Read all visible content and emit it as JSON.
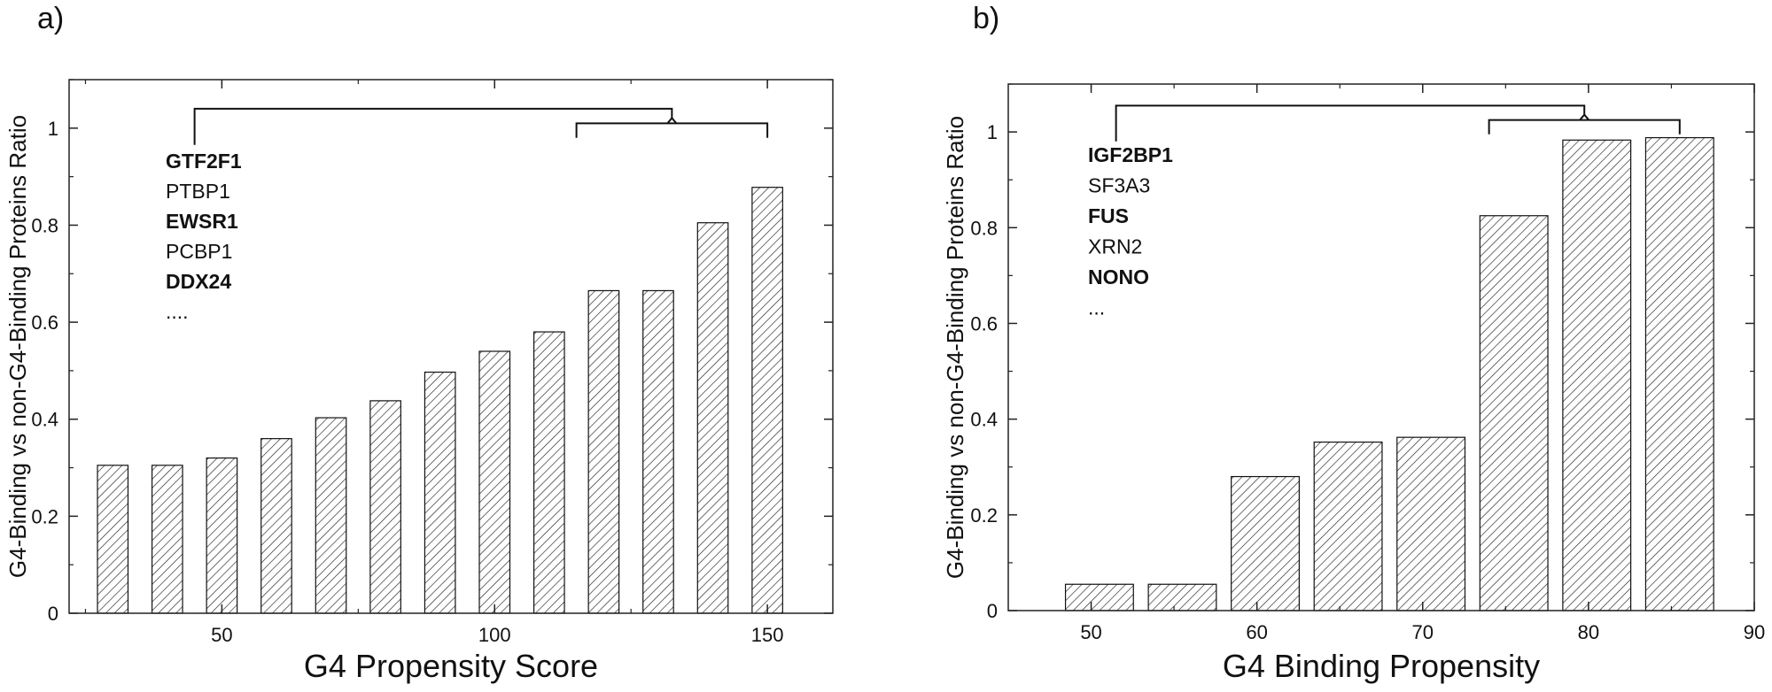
{
  "chart_data": [
    {
      "type": "bar",
      "panel_label": "a)",
      "title": "",
      "xlabel": "G4 Propensity Score",
      "ylabel": "G4-Binding vs non-G4-Binding Proteins Ratio",
      "x": [
        30,
        40,
        50,
        60,
        70,
        80,
        90,
        100,
        110,
        120,
        130,
        140,
        150
      ],
      "values": [
        0.305,
        0.305,
        0.32,
        0.36,
        0.403,
        0.438,
        0.497,
        0.54,
        0.58,
        0.665,
        0.665,
        0.805,
        0.878
      ],
      "xlim": [
        22,
        162
      ],
      "ylim": [
        0,
        1.1
      ],
      "xticks": [
        50,
        100,
        150
      ],
      "xtick_labels": [
        "50",
        "100",
        "150"
      ],
      "yticks": [
        0,
        0.2,
        0.4,
        0.6,
        0.8,
        1
      ],
      "ytick_labels": [
        "0",
        "0.2",
        "0.4",
        "0.6",
        "0.8",
        "1"
      ],
      "bar_width": 5.6,
      "grid": false,
      "bracket": {
        "outer_left": 45,
        "inner_left": 115,
        "inner_right": 150,
        "outer_top": 1.04,
        "inner_top": 1.01,
        "base": 0.98
      },
      "genes": [
        {
          "name": "GTF2F1",
          "bold": true
        },
        {
          "name": "PTBP1",
          "bold": false
        },
        {
          "name": "EWSR1",
          "bold": true
        },
        {
          "name": "PCBP1",
          "bold": false
        },
        {
          "name": "DDX24",
          "bold": true
        },
        {
          "name": "....",
          "bold": false
        }
      ]
    },
    {
      "type": "bar",
      "panel_label": "b)",
      "title": "",
      "xlabel": "G4 Binding Propensity",
      "ylabel": "G4-Binding vs non-G4-Binding Proteins Ratio",
      "x": [
        50.5,
        55.5,
        60.5,
        65.5,
        70.5,
        75.5,
        80.5,
        85.5
      ],
      "values": [
        0.055,
        0.055,
        0.28,
        0.352,
        0.362,
        0.825,
        0.983,
        0.988
      ],
      "xlim": [
        45,
        90
      ],
      "ylim": [
        0,
        1.1
      ],
      "xticks": [
        50,
        60,
        70,
        80,
        90
      ],
      "xtick_labels": [
        "50",
        "60",
        "70",
        "80",
        "90"
      ],
      "yticks": [
        0,
        0.2,
        0.4,
        0.6,
        0.8,
        1
      ],
      "ytick_labels": [
        "0",
        "0.2",
        "0.4",
        "0.6",
        "0.8",
        "1"
      ],
      "bar_width": 4.1,
      "grid": false,
      "bracket": {
        "outer_left": 51.5,
        "inner_left": 74,
        "inner_right": 85.5,
        "outer_top": 1.055,
        "inner_top": 1.025,
        "base": 0.995
      },
      "genes": [
        {
          "name": "IGF2BP1",
          "bold": true
        },
        {
          "name": "SF3A3",
          "bold": false
        },
        {
          "name": "FUS",
          "bold": true
        },
        {
          "name": "XRN2",
          "bold": false
        },
        {
          "name": "NONO",
          "bold": true
        },
        {
          "name": "...",
          "bold": false
        }
      ]
    }
  ]
}
